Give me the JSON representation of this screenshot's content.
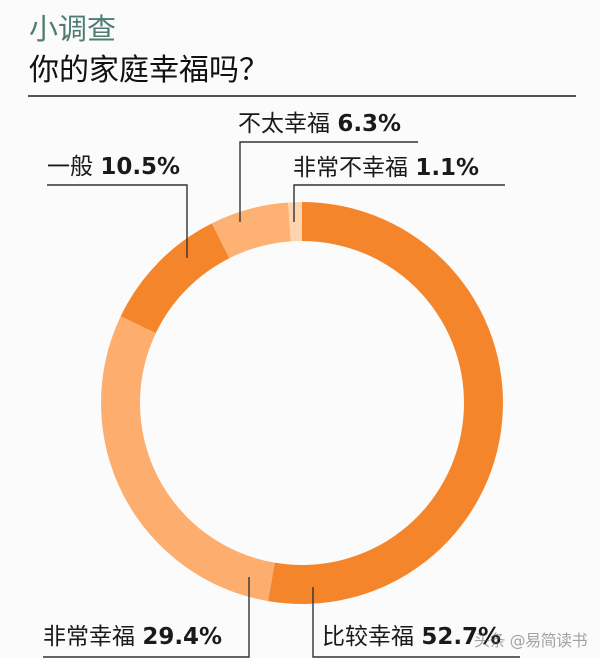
{
  "header": {
    "kicker": "小调查",
    "title": "你的家庭幸福吗？"
  },
  "watermark": "头条 @易简读书",
  "chart_data": {
    "type": "pie",
    "subtype": "donut",
    "title": "你的家庭幸福吗？",
    "start_angle_deg": 0,
    "direction": "clockwise",
    "slices": [
      {
        "label": "比较幸福",
        "value": 52.7,
        "display": "52.7%",
        "color": "#f5852b"
      },
      {
        "label": "非常幸福",
        "value": 29.4,
        "display": "29.4%",
        "color": "#fdae6e"
      },
      {
        "label": "一般",
        "value": 10.5,
        "display": "10.5%",
        "color": "#f5852b"
      },
      {
        "label": "不太幸福",
        "value": 6.3,
        "display": "6.3%",
        "color": "#fdb273"
      },
      {
        "label": "非常不幸福",
        "value": 1.1,
        "display": "1.1%",
        "color": "#fdd3b0"
      }
    ],
    "legend_position": "leader-line labels"
  }
}
